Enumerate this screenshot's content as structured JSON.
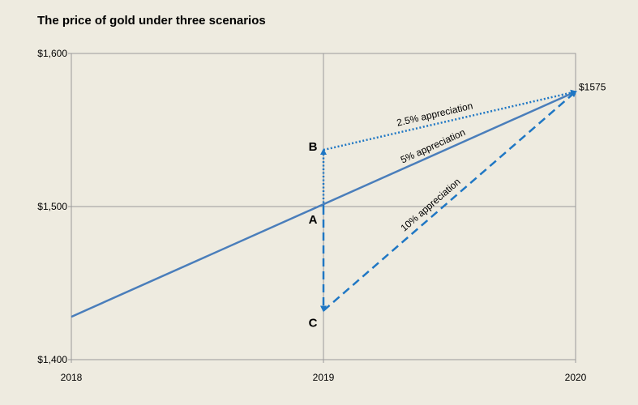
{
  "chart_data": {
    "type": "line",
    "title": "The price of gold under three scenarios",
    "xlabel": "",
    "ylabel": "",
    "x_ticks": [
      "2018",
      "2019",
      "2020"
    ],
    "y_ticks": [
      "$1,400",
      "$1,500",
      "$1,600"
    ],
    "xlim": [
      2018,
      2020
    ],
    "ylim": [
      1400,
      1600
    ],
    "grid": true,
    "colors": {
      "line": "#4a7ebb",
      "arrow": "#1f77c4",
      "plot_bg": "#eeebe0"
    },
    "series": [
      {
        "points": [
          [
            2018,
            1428
          ],
          [
            2020,
            1575
          ]
        ],
        "style": "solid"
      },
      {
        "points": [
          [
            2019,
            1500
          ],
          [
            2019,
            1537
          ]
        ],
        "style": "dotted"
      },
      {
        "points": [
          [
            2019,
            1537
          ],
          [
            2020,
            1575
          ]
        ],
        "style": "dotted"
      },
      {
        "points": [
          [
            2019,
            1500
          ],
          [
            2019,
            1432
          ]
        ],
        "style": "dashed"
      },
      {
        "points": [
          [
            2019,
            1432
          ],
          [
            2020,
            1575
          ]
        ],
        "style": "dashed"
      }
    ],
    "points": [
      {
        "label": "A",
        "x": 2019,
        "y": 1500
      },
      {
        "label": "B",
        "x": 2019,
        "y": 1537
      },
      {
        "label": "C",
        "x": 2019,
        "y": 1432
      }
    ],
    "annotations": [
      {
        "text": "$1575",
        "x": 2020,
        "y": 1575
      },
      {
        "text": "2.5% appreciation",
        "from": [
          2019,
          1537
        ],
        "to": [
          2020,
          1575
        ]
      },
      {
        "text": "5% appreciation",
        "from": [
          2019,
          1500
        ],
        "to": [
          2020,
          1575
        ]
      },
      {
        "text": "10% appreciation",
        "from": [
          2019,
          1432
        ],
        "to": [
          2020,
          1575
        ]
      }
    ]
  }
}
